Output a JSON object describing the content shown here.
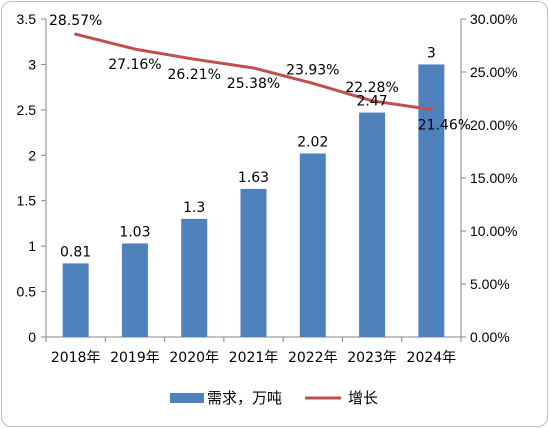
{
  "chart_data": {
    "type": "bar",
    "categories": [
      "2018年",
      "2019年",
      "2020年",
      "2021年",
      "2022年",
      "2023年",
      "2024年"
    ],
    "series": [
      {
        "name": "需求，万吨",
        "type": "bar",
        "axis": "left",
        "color": "#4f81bd",
        "values": [
          0.81,
          1.03,
          1.3,
          1.63,
          2.02,
          2.47,
          3
        ],
        "labels": [
          "0.81",
          "1.03",
          "1.3",
          "1.63",
          "2.02",
          "2.47",
          "3"
        ]
      },
      {
        "name": "增长",
        "type": "line",
        "axis": "right",
        "color": "#c0504d",
        "values": [
          28.57,
          27.16,
          26.21,
          25.38,
          23.93,
          22.28,
          21.46
        ],
        "labels": [
          "28.57%",
          "27.16%",
          "26.21%",
          "25.38%",
          "23.93%",
          "22.28%",
          "21.46%"
        ]
      }
    ],
    "y_left": {
      "ylim": [
        0,
        3.5
      ],
      "ticks": [
        "0",
        "0.5",
        "1",
        "1.5",
        "2",
        "2.5",
        "3",
        "3.5"
      ]
    },
    "y_right": {
      "ylim": [
        0,
        30
      ],
      "ticks": [
        "0.00%",
        "5.00%",
        "10.00%",
        "15.00%",
        "20.00%",
        "25.00%",
        "30.00%"
      ]
    },
    "legend": "bottom",
    "grid": false
  }
}
